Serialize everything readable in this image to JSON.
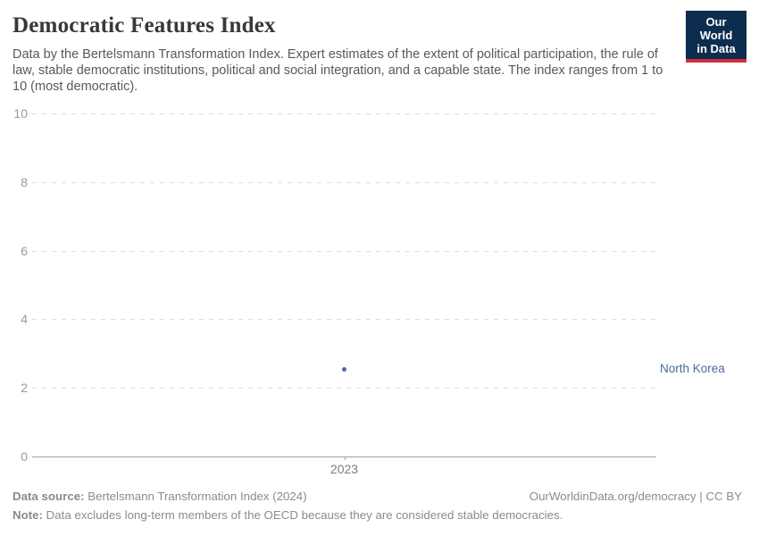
{
  "header": {
    "title": "Democratic Features Index",
    "subtitle": "Data by the Bertelsmann Transformation Index. Expert estimates of the extent of political participation, the rule of law, stable democratic institutions, political and social integration, and a capable state. The index ranges from 1 to 10 (most democratic).",
    "logo": {
      "line1": "Our World",
      "line2": "in Data"
    }
  },
  "chart_data": {
    "type": "scatter",
    "title": "Democratic Features Index",
    "xlabel": "",
    "ylabel": "",
    "x": [
      2023
    ],
    "xticks": [
      "2023"
    ],
    "yticks": [
      0,
      2,
      4,
      6,
      8,
      10
    ],
    "ylim": [
      0,
      10
    ],
    "grid": "horizontal-dashed",
    "legend_position": "right-of-point",
    "series": [
      {
        "name": "North Korea",
        "x": 2023,
        "value": 2.55,
        "color": "#4c6a9c"
      }
    ]
  },
  "footer": {
    "source_label": "Data source:",
    "source_text": " Bertelsmann Transformation Index (2024)",
    "link_text": "OurWorldinData.org/democracy | CC BY",
    "note_label": "Note:",
    "note_text": " Data excludes long-term members of the OECD because they are considered stable democracies."
  },
  "colors": {
    "accent_blue": "#4c6a9c",
    "logo_navy": "#0d2d4f",
    "logo_red": "#d12b3f",
    "gridline": "#dcdcdc",
    "axis_line": "#a1a1a1"
  }
}
